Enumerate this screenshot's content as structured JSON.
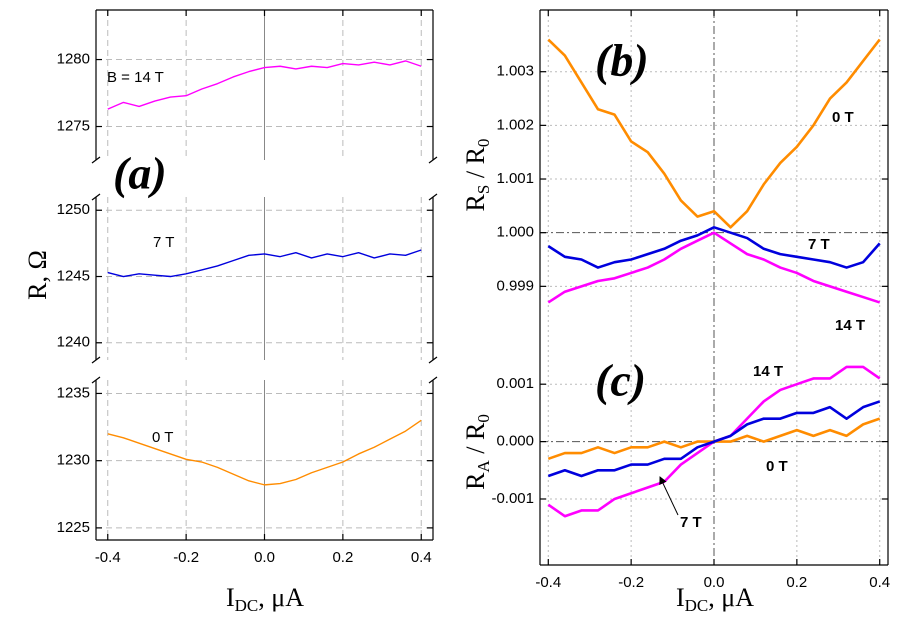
{
  "chart_data": [
    {
      "type": "line",
      "xlim": [
        -0.43,
        0.43
      ],
      "xticks": [
        -0.4,
        -0.2,
        {
          "value": 0,
          "label": "0.0"
        },
        0.2,
        0.4
      ],
      "ylim": [
        1272.5,
        1283.7
      ],
      "yticks": [
        1275,
        1280
      ],
      "grid": true,
      "x": [
        -0.4,
        -0.36,
        -0.32,
        -0.28,
        -0.24,
        -0.2,
        -0.16,
        -0.12,
        -0.08,
        -0.04,
        0,
        0.04,
        0.08,
        0.12,
        0.16,
        0.2,
        0.24,
        0.28,
        0.32,
        0.36,
        0.4
      ],
      "series": [
        {
          "name": "B = 14 T",
          "color": "#ff00ff",
          "values": [
            1276.3,
            1276.8,
            1276.5,
            1276.9,
            1277.2,
            1277.3,
            1277.8,
            1278.2,
            1278.7,
            1279.1,
            1279.4,
            1279.5,
            1279.3,
            1279.5,
            1279.4,
            1279.7,
            1279.6,
            1279.8,
            1279.6,
            1279.9,
            1279.5
          ]
        }
      ]
    },
    {
      "type": "line",
      "panel": "(a)",
      "ylabel": [
        "R, Ω"
      ],
      "xlim": [
        -0.43,
        0.43
      ],
      "xticks": [
        -0.4,
        -0.2,
        {
          "value": 0,
          "label": "0.0"
        },
        0.2,
        0.4
      ],
      "ylim": [
        1238.7,
        1251
      ],
      "yticks": [
        1240,
        1245,
        1250
      ],
      "grid": true,
      "x": [
        -0.4,
        -0.36,
        -0.32,
        -0.28,
        -0.24,
        -0.2,
        -0.16,
        -0.12,
        -0.08,
        -0.04,
        0,
        0.04,
        0.08,
        0.12,
        0.16,
        0.2,
        0.24,
        0.28,
        0.32,
        0.36,
        0.4
      ],
      "series": [
        {
          "name": "7 T",
          "color": "#0000dd",
          "values": [
            1245.3,
            1245.0,
            1245.2,
            1245.1,
            1245.0,
            1245.2,
            1245.5,
            1245.8,
            1246.2,
            1246.6,
            1246.7,
            1246.5,
            1246.8,
            1246.4,
            1246.7,
            1246.5,
            1246.8,
            1246.4,
            1246.7,
            1246.6,
            1247.0
          ]
        }
      ]
    },
    {
      "type": "line",
      "xlabel": [
        "I",
        "DC",
        ", μA"
      ],
      "xlim": [
        -0.43,
        0.43
      ],
      "xticks": [
        -0.4,
        -0.2,
        {
          "value": 0,
          "label": "0.0"
        },
        0.2,
        0.4
      ],
      "ylim": [
        1224.1,
        1236
      ],
      "yticks": [
        1225,
        1230,
        1235
      ],
      "grid": true,
      "x": [
        -0.4,
        -0.36,
        -0.32,
        -0.28,
        -0.24,
        -0.2,
        -0.16,
        -0.12,
        -0.08,
        -0.04,
        0,
        0.04,
        0.08,
        0.12,
        0.16,
        0.2,
        0.24,
        0.28,
        0.32,
        0.36,
        0.4
      ],
      "series": [
        {
          "name": "0 T",
          "color": "#ff8c00",
          "values": [
            1232.0,
            1231.7,
            1231.3,
            1230.9,
            1230.5,
            1230.1,
            1229.9,
            1229.5,
            1229.0,
            1228.5,
            1228.2,
            1228.3,
            1228.6,
            1229.1,
            1229.5,
            1229.9,
            1230.5,
            1231.0,
            1231.6,
            1232.2,
            1233.0
          ]
        }
      ]
    },
    {
      "type": "line",
      "panel": "(b)",
      "ylabel": [
        "R",
        "S",
        " / R",
        "0"
      ],
      "xlim": [
        -0.42,
        0.42
      ],
      "xticks": [
        -0.4,
        -0.2,
        {
          "value": 0,
          "label": "0.0"
        },
        0.2,
        0.4
      ],
      "ylim": [
        0.998,
        1.00415
      ],
      "yticks": [
        0.999,
        {
          "value": 1,
          "label": "1.000"
        },
        1.001,
        1.002,
        1.003
      ],
      "grid": true,
      "x": [
        -0.4,
        -0.36,
        -0.32,
        -0.28,
        -0.24,
        -0.2,
        -0.16,
        -0.12,
        -0.08,
        -0.04,
        0,
        0.04,
        0.08,
        0.12,
        0.16,
        0.2,
        0.24,
        0.28,
        0.32,
        0.36,
        0.4
      ],
      "series": [
        {
          "name": "0 T",
          "color": "#ff8c00",
          "values": [
            1.0036,
            1.0033,
            1.0028,
            1.0023,
            1.0022,
            1.0017,
            1.0015,
            1.0011,
            1.0006,
            1.0003,
            1.0004,
            1.0001,
            1.0004,
            1.0009,
            1.0013,
            1.0016,
            1.002,
            1.0025,
            1.0028,
            1.0032,
            1.0036
          ]
        },
        {
          "name": "7 T",
          "color": "#0000dd",
          "values": [
            0.99975,
            0.99955,
            0.9995,
            0.99935,
            0.99945,
            0.9995,
            0.9996,
            0.9997,
            0.99985,
            0.99995,
            1.0001,
            1.0,
            0.9999,
            0.9997,
            0.9996,
            0.99955,
            0.9995,
            0.99945,
            0.99935,
            0.99945,
            0.9998
          ]
        },
        {
          "name": "14 T",
          "color": "#ff00ff",
          "values": [
            0.9987,
            0.9989,
            0.999,
            0.9991,
            0.99915,
            0.99925,
            0.99935,
            0.9995,
            0.9997,
            0.99985,
            1.0,
            0.9998,
            0.9996,
            0.9995,
            0.99935,
            0.99925,
            0.9991,
            0.999,
            0.9989,
            0.9988,
            0.9987
          ]
        }
      ]
    },
    {
      "type": "line",
      "panel": "(c)",
      "ylabel": [
        "R",
        "A",
        " / R",
        "0"
      ],
      "xlabel": [
        "I",
        "DC",
        ", μA"
      ],
      "xlim": [
        -0.42,
        0.42
      ],
      "xticks": [
        -0.4,
        -0.2,
        {
          "value": 0,
          "label": "0.0"
        },
        0.2,
        0.4
      ],
      "ylim": [
        -0.00215,
        0.00177
      ],
      "yticks": [
        -0.001,
        {
          "value": 0,
          "label": "0.000"
        },
        0.001
      ],
      "grid": true,
      "x": [
        -0.4,
        -0.36,
        -0.32,
        -0.28,
        -0.24,
        -0.2,
        -0.16,
        -0.12,
        -0.08,
        -0.04,
        0,
        0.04,
        0.08,
        0.12,
        0.16,
        0.2,
        0.24,
        0.28,
        0.32,
        0.36,
        0.4
      ],
      "series": [
        {
          "name": "14 T",
          "color": "#ff00ff",
          "values": [
            -0.0011,
            -0.0013,
            -0.0012,
            -0.0012,
            -0.001,
            -0.0009,
            -0.0008,
            -0.0007,
            -0.0004,
            -0.0002,
            0,
            0.0001,
            0.0004,
            0.0007,
            0.0009,
            0.001,
            0.0011,
            0.0011,
            0.0013,
            0.0013,
            0.0011
          ]
        },
        {
          "name": "0 T",
          "color": "#ff8c00",
          "values": [
            -0.0003,
            -0.0002,
            -0.0002,
            -0.0001,
            -0.0002,
            -0.0001,
            -0.0001,
            0,
            -0.0001,
            0,
            0,
            0,
            0.0001,
            0,
            0.0001,
            0.0002,
            0.0001,
            0.0002,
            0.0001,
            0.0003,
            0.0004
          ]
        },
        {
          "name": "7 T",
          "color": "#0000dd",
          "values": [
            -0.0006,
            -0.0005,
            -0.0006,
            -0.0005,
            -0.0005,
            -0.0004,
            -0.0004,
            -0.0003,
            -0.0003,
            -0.0001,
            0,
            0.0001,
            0.0003,
            0.0004,
            0.0004,
            0.0005,
            0.0005,
            0.0006,
            0.0004,
            0.0006,
            0.0007
          ]
        }
      ]
    }
  ]
}
